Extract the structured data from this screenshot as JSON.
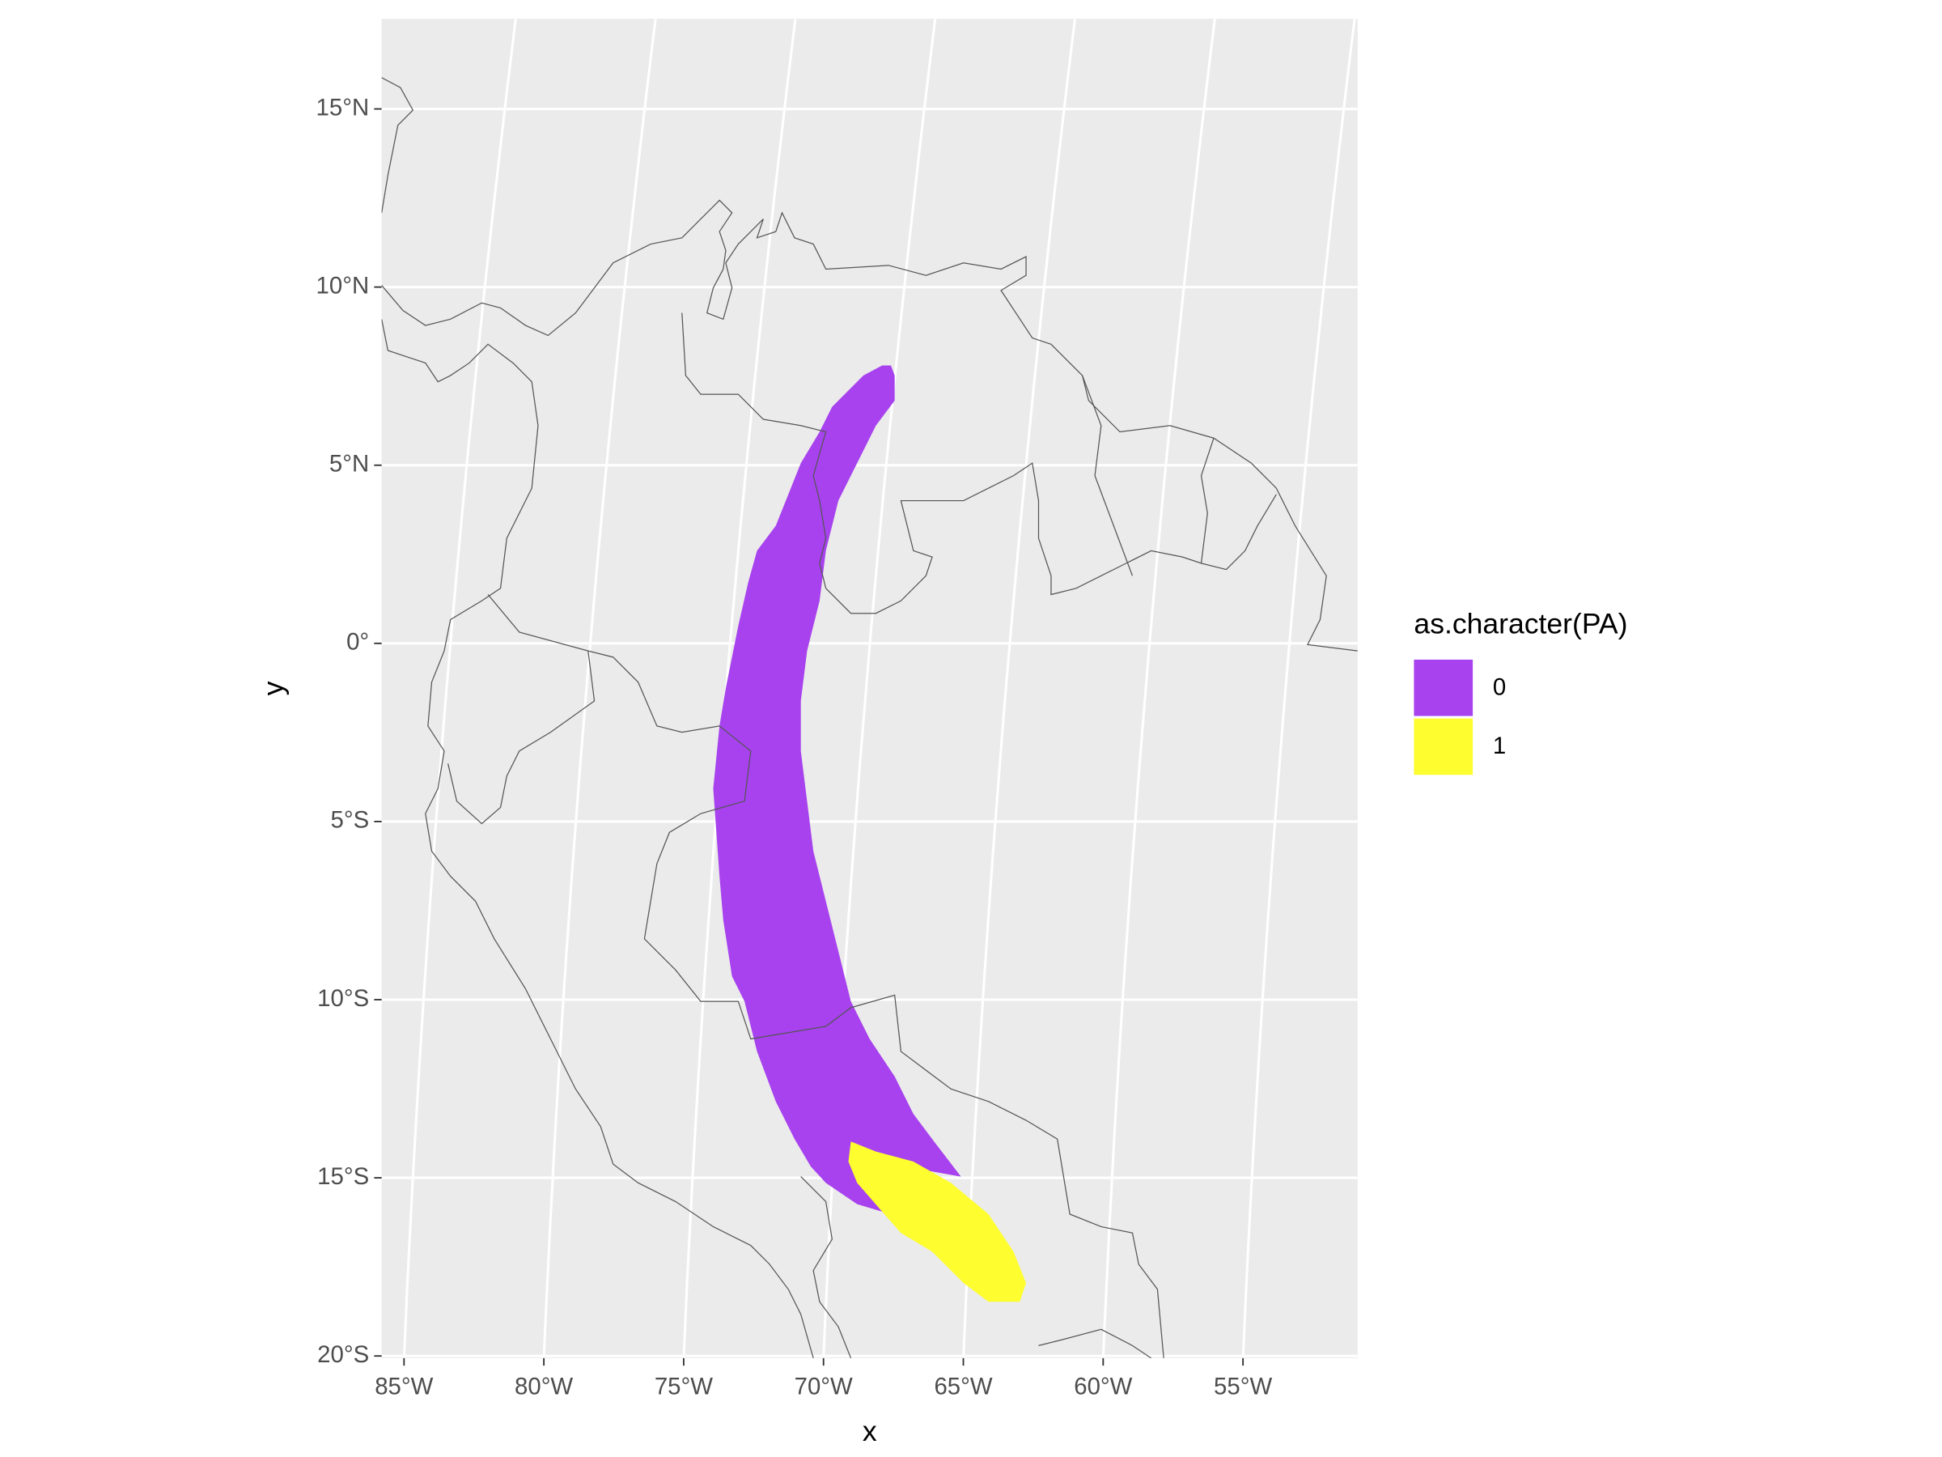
{
  "chart_data": {
    "type": "raster-map",
    "x_label": "x",
    "y_label": "y",
    "xlim": [
      -85.8,
      -50.9
    ],
    "ylim": [
      -20.06,
      17.53
    ],
    "xticks": [
      {
        "value": -85,
        "label": "85°W"
      },
      {
        "value": -80,
        "label": "80°W"
      },
      {
        "value": -75,
        "label": "75°W"
      },
      {
        "value": -70,
        "label": "70°W"
      },
      {
        "value": -65,
        "label": "65°W"
      },
      {
        "value": -60,
        "label": "60°W"
      },
      {
        "value": -55,
        "label": "55°W"
      }
    ],
    "yticks": [
      {
        "value": 15,
        "label": "15°N"
      },
      {
        "value": 10,
        "label": "10°N"
      },
      {
        "value": 5,
        "label": "5°N"
      },
      {
        "value": 0,
        "label": "0°"
      },
      {
        "value": -5,
        "label": "5°S"
      },
      {
        "value": -10,
        "label": "10°S"
      },
      {
        "value": -15,
        "label": "15°S"
      },
      {
        "value": -20,
        "label": "20°S"
      }
    ],
    "grid": true,
    "legend_title": "as.character(PA)",
    "series": [
      {
        "name": "0",
        "color": "#a742ee"
      },
      {
        "name": "1",
        "color": "#fdfd2f"
      }
    ]
  }
}
